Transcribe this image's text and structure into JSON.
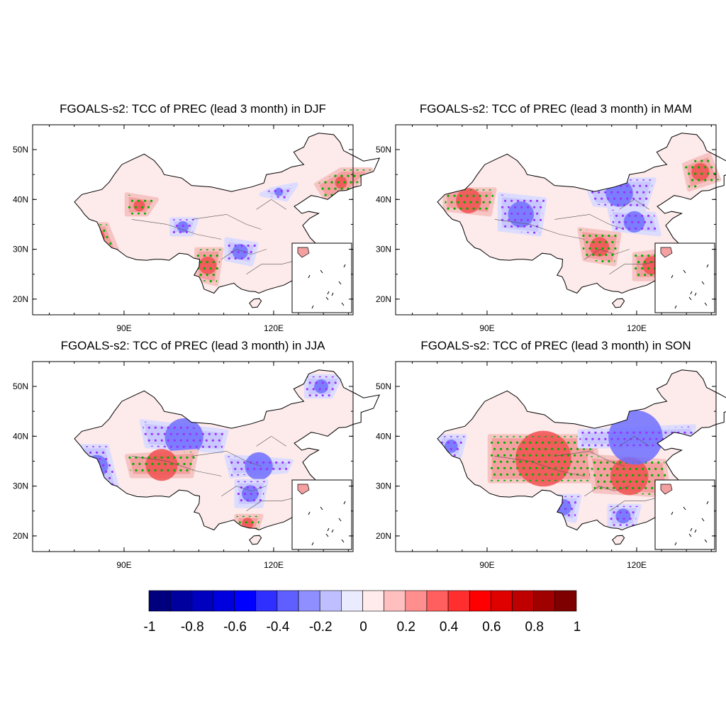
{
  "figure": {
    "panels": [
      {
        "id": "djf",
        "title": "FGOALS-s2: TCC of PREC (lead 3 month) in DJF"
      },
      {
        "id": "mam",
        "title": "FGOALS-s2: TCC of PREC (lead 3 month) in MAM"
      },
      {
        "id": "jja",
        "title": "FGOALS-s2: TCC of PREC (lead 3 month) in JJA"
      },
      {
        "id": "son",
        "title": "FGOALS-s2: TCC of PREC (lead 3 month) in SON"
      }
    ],
    "lat_ticks": [
      "50N",
      "40N",
      "30N",
      "20N"
    ],
    "lon_ticks": [
      "90E",
      "120E"
    ],
    "colorbar": {
      "colors": [
        "#00007f",
        "#00009f",
        "#0000bf",
        "#0000df",
        "#0000ff",
        "#2f2fff",
        "#5f5fff",
        "#8f8fff",
        "#bfbfff",
        "#ebebff",
        "#ffebeb",
        "#ffbfbf",
        "#ff8f8f",
        "#ff5f5f",
        "#ff2f2f",
        "#ff0000",
        "#df0000",
        "#bf0000",
        "#9f0000",
        "#7f0000"
      ],
      "labels": [
        "-1",
        "-0.8",
        "-0.6",
        "-0.4",
        "-0.2",
        "0",
        "0.2",
        "0.4",
        "0.6",
        "0.8",
        "1"
      ]
    },
    "stipple_colors": {
      "positive": "#00b000",
      "negative": "#9933ff"
    }
  }
}
